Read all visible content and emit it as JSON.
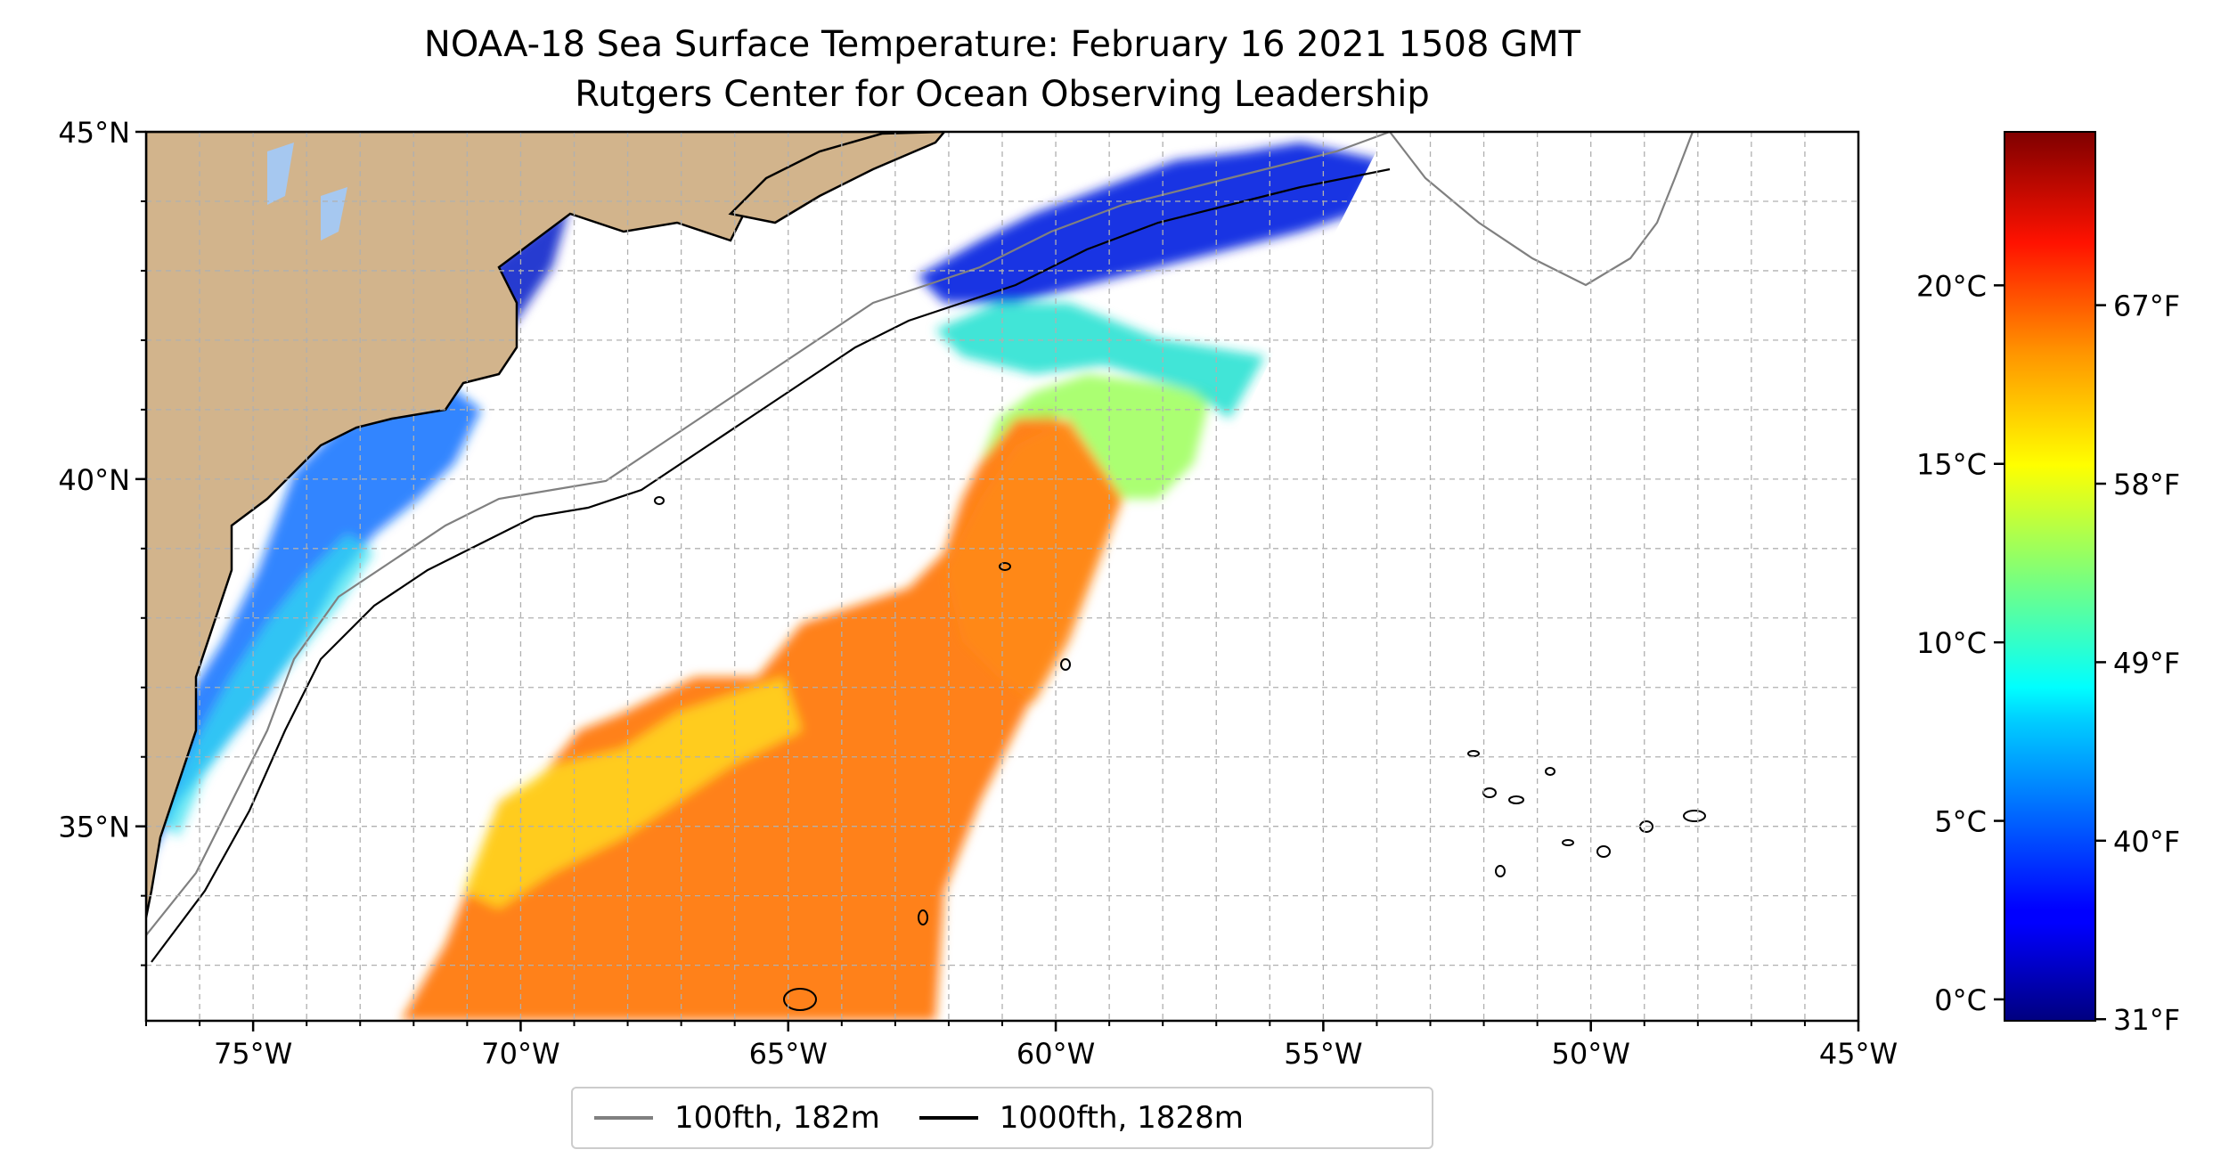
{
  "title": {
    "line1": "NOAA-18 Sea Surface Temperature: February 16 2021 1508 GMT",
    "line2": "Rutgers Center for Ocean Observing Leadership"
  },
  "map": {
    "lon_range": [
      -77,
      -45
    ],
    "lat_range": [
      32.2,
      45
    ],
    "lat_ticks": [
      {
        "value": 45,
        "label": "45°N"
      },
      {
        "value": 40,
        "label": "40°N"
      },
      {
        "value": 35,
        "label": "35°N"
      }
    ],
    "lon_ticks": [
      {
        "value": -75,
        "label": "75°W"
      },
      {
        "value": -70,
        "label": "70°W"
      },
      {
        "value": -65,
        "label": "65°W"
      },
      {
        "value": -60,
        "label": "60°W"
      },
      {
        "value": -55,
        "label": "55°W"
      },
      {
        "value": -50,
        "label": "50°W"
      },
      {
        "value": -45,
        "label": "45°W"
      }
    ],
    "gridlines": true,
    "land_color": "#d2b48c",
    "colors": {
      "isobath_100fth": "#808080",
      "isobath_1000fth": "#000000"
    }
  },
  "colorbar": {
    "colormap": "jet",
    "celsius_ticks": [
      {
        "value": 0,
        "label": "0°C"
      },
      {
        "value": 5,
        "label": "5°C"
      },
      {
        "value": 10,
        "label": "10°C"
      },
      {
        "value": 15,
        "label": "15°C"
      },
      {
        "value": 20,
        "label": "20°C"
      }
    ],
    "fahrenheit_ticks": [
      {
        "value": 31,
        "label": "31°F"
      },
      {
        "value": 40,
        "label": "40°F"
      },
      {
        "value": 49,
        "label": "49°F"
      },
      {
        "value": 58,
        "label": "58°F"
      },
      {
        "value": 67,
        "label": "67°F"
      }
    ]
  },
  "legend": {
    "items": [
      {
        "label": "100fth, 182m",
        "color": "#808080"
      },
      {
        "label": "1000fth, 1828m",
        "color": "#000000"
      }
    ]
  }
}
